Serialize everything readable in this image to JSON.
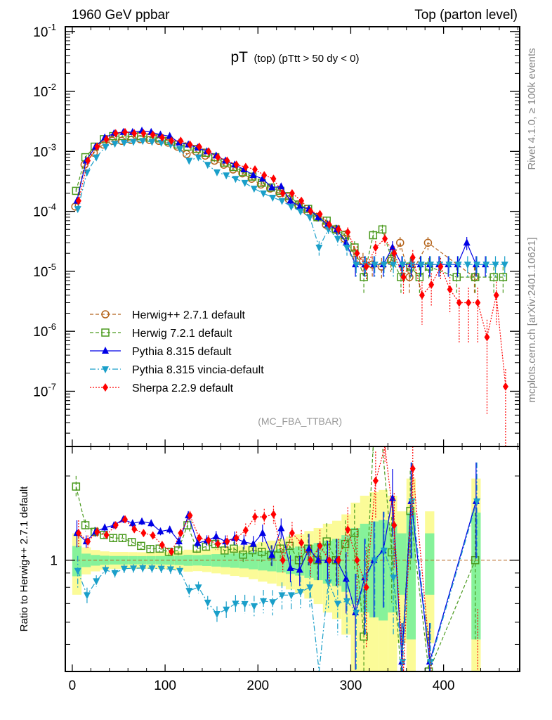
{
  "header": {
    "left": "1960 GeV ppbar",
    "right": "Top (parton level)"
  },
  "side_labels": {
    "rivet": "Rivet 4.1.0, ≥ 100k events",
    "mcplots": "mcplots.cern.ch [arXiv:2401.10621]"
  },
  "chart_data": {
    "type": "line",
    "title_main": "pT",
    "title_sub": "(top) (pTtt > 50 dy < 0)",
    "analysis_label": "(MC_FBA_TTBAR)",
    "xlabel": "",
    "ylabel": "",
    "xlim": [
      -7.5,
      482
    ],
    "ylim": [
      1.2e-08,
      0.12
    ],
    "yscale": "log",
    "x_ticks": [
      "0",
      "100",
      "200",
      "300",
      "400"
    ],
    "x_tick_values": [
      0,
      100,
      200,
      300,
      400
    ],
    "y_ticks": [
      {
        "base": "10",
        "exp": "-1",
        "value": 0.1
      },
      {
        "base": "10",
        "exp": "-2",
        "value": 0.01
      },
      {
        "base": "10",
        "exp": "-3",
        "value": 0.001
      },
      {
        "base": "10",
        "exp": "-4",
        "value": 0.0001
      },
      {
        "base": "10",
        "exp": "-5",
        "value": 1e-05
      },
      {
        "base": "10",
        "exp": "-6",
        "value": 1e-06
      },
      {
        "base": "10",
        "exp": "-7",
        "value": 1e-07
      }
    ],
    "ratio": {
      "ylabel": "Ratio to Herwig++ 2.7.1 default",
      "reference": "Herwig++ 2.7.1 default",
      "ylim": [
        0.4,
        2.55
      ],
      "yscale": "log",
      "y_ticks": [
        "1"
      ],
      "y_tick_values": [
        1
      ]
    },
    "legend_position": "lower-left",
    "x": [
      5,
      15,
      25,
      35,
      45,
      55,
      65,
      75,
      85,
      95,
      105,
      115,
      125,
      135,
      145,
      155,
      165,
      175,
      185,
      195,
      205,
      215,
      225,
      235,
      245,
      255,
      265,
      275,
      285,
      295,
      305,
      315,
      325,
      335,
      345,
      355,
      365,
      375,
      385,
      395,
      405,
      415,
      425,
      435,
      445,
      455,
      465
    ],
    "series": [
      {
        "name": "Herwig++ 2.7.1 default",
        "color": "#b5651d",
        "marker": "circle-open",
        "line": "dashed",
        "values": [
          0.00012,
          0.0006,
          0.00095,
          0.0013,
          0.0015,
          0.0015,
          0.00155,
          0.0016,
          0.00155,
          0.0015,
          0.0014,
          0.0012,
          0.0009,
          0.001,
          0.00085,
          0.0007,
          0.0006,
          0.0005,
          0.00043,
          0.00035,
          0.00028,
          0.00024,
          0.0002,
          0.00016,
          0.00013,
          0.0001,
          8e-05,
          6e-05,
          5e-05,
          3.5e-05,
          2e-05,
          1.5e-05,
          1.3e-05,
          1.2e-05,
          1.5e-05,
          3e-05,
          8e-06,
          null,
          3e-05,
          null,
          null,
          null,
          null,
          8e-06,
          null,
          null,
          null
        ]
      },
      {
        "name": "Herwig 7.2.1 default",
        "color": "#4a9a1e",
        "marker": "square-open",
        "line": "dashed",
        "values": [
          0.00022,
          0.0008,
          0.0012,
          0.0016,
          0.0018,
          0.0018,
          0.0018,
          0.0018,
          0.0017,
          0.00165,
          0.0015,
          0.0013,
          0.0012,
          0.0011,
          0.00095,
          0.0008,
          0.00065,
          0.00055,
          0.00045,
          0.00038,
          0.0003,
          0.00025,
          0.00022,
          0.00018,
          0.00013,
          0.00011,
          8e-05,
          7e-05,
          5e-05,
          4e-05,
          2.5e-05,
          8e-06,
          4e-05,
          5e-05,
          1.6e-05,
          8e-06,
          1.2e-05,
          8e-06,
          1.2e-05,
          null,
          null,
          8e-06,
          null,
          8e-06,
          null,
          8e-06,
          8e-06
        ]
      },
      {
        "name": "Pythia 8.315 default",
        "color": "#0000e6",
        "marker": "triangle-up",
        "line": "solid",
        "values": [
          0.00015,
          0.0007,
          0.0012,
          0.0017,
          0.002,
          0.0021,
          0.0021,
          0.0022,
          0.0021,
          0.0019,
          0.0018,
          0.0014,
          0.0013,
          0.00115,
          0.001,
          0.00085,
          0.0007,
          0.0006,
          0.0005,
          0.0004,
          0.00035,
          0.00025,
          0.00026,
          0.00015,
          0.00012,
          0.00011,
          8e-05,
          6e-05,
          5e-05,
          3e-05,
          1.3e-05,
          1.3e-05,
          1.3e-05,
          1.3e-05,
          2.5e-05,
          1.3e-05,
          1.3e-05,
          1.3e-05,
          1.3e-05,
          1.3e-05,
          1.3e-05,
          1.3e-05,
          3e-05,
          1.3e-05,
          1.3e-05,
          null,
          null
        ]
      },
      {
        "name": "Pythia 8.315 vincia-default",
        "color": "#1a9fc9",
        "marker": "triangle-down",
        "line": "dashdot",
        "values": [
          0.00011,
          0.00045,
          0.0008,
          0.0012,
          0.00135,
          0.0014,
          0.00145,
          0.0015,
          0.00145,
          0.0014,
          0.0013,
          0.0011,
          0.0007,
          0.0008,
          0.0006,
          0.00045,
          0.0004,
          0.00035,
          0.0003,
          0.00024,
          0.0002,
          0.00017,
          0.00015,
          0.00012,
          0.0001,
          8e-05,
          2.5e-05,
          5e-05,
          3.5e-05,
          2.5e-05,
          1.3e-05,
          1.3e-05,
          1.3e-05,
          1.3e-05,
          1.3e-05,
          1.3e-05,
          1.3e-05,
          1.3e-05,
          1.3e-05,
          1.3e-05,
          1.3e-05,
          1.3e-05,
          1.3e-05,
          1.3e-05,
          1.3e-05,
          1.3e-05,
          1.3e-05
        ]
      },
      {
        "name": "Sherpa 2.2.9 default",
        "color": "#ff0000",
        "marker": "diamond",
        "line": "dotted",
        "values": [
          0.00015,
          0.0007,
          0.0012,
          0.0016,
          0.002,
          0.0021,
          0.002,
          0.002,
          0.0019,
          0.0017,
          0.0015,
          0.0015,
          0.0013,
          0.0012,
          0.001,
          0.0008,
          0.0007,
          0.0006,
          0.00055,
          0.0005,
          0.0004,
          0.00035,
          0.0002,
          0.0002,
          0.00015,
          0.0001,
          9e-05,
          6e-05,
          5e-05,
          4.5e-05,
          2e-05,
          1.2e-05,
          2.5e-05,
          3.5e-05,
          2e-05,
          8e-06,
          1.7e-05,
          4e-06,
          6e-06,
          1.2e-05,
          5e-06,
          3e-06,
          3e-06,
          3e-06,
          8e-07,
          4e-06,
          1.2e-07
        ]
      }
    ],
    "band_colors": {
      "inner": "#86f29a",
      "outer": "#fbfb98"
    }
  }
}
